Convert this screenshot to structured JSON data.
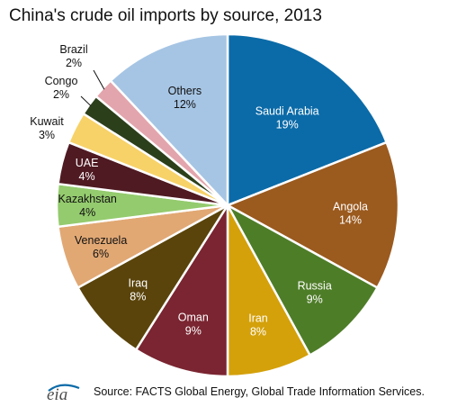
{
  "chart_data": {
    "type": "pie",
    "title": "China's crude oil imports by source, 2013",
    "unit": "%",
    "slices": [
      {
        "name": "Saudi Arabia",
        "value": 19,
        "label": "19%",
        "color": "#0b6ba8",
        "text_color": "#ffffff"
      },
      {
        "name": "Angola",
        "value": 14,
        "label": "14%",
        "color": "#9b5a1e",
        "text_color": "#ffffff"
      },
      {
        "name": "Russia",
        "value": 9,
        "label": "9%",
        "color": "#4e7d28",
        "text_color": "#ffffff"
      },
      {
        "name": "Iran",
        "value": 8,
        "label": "8%",
        "color": "#d4a10b",
        "text_color": "#ffffff"
      },
      {
        "name": "Oman",
        "value": 9,
        "label": "9%",
        "color": "#7a2531",
        "text_color": "#ffffff"
      },
      {
        "name": "Iraq",
        "value": 8,
        "label": "8%",
        "color": "#5a440b",
        "text_color": "#ffffff"
      },
      {
        "name": "Venezuela",
        "value": 6,
        "label": "6%",
        "color": "#e1a874",
        "text_color": "#111111"
      },
      {
        "name": "Kazakhstan",
        "value": 4,
        "label": "4%",
        "color": "#94cb6e",
        "text_color": "#111111"
      },
      {
        "name": "UAE",
        "value": 4,
        "label": "4%",
        "color": "#4f1a22",
        "text_color": "#ffffff"
      },
      {
        "name": "Kuwait",
        "value": 3,
        "label": "3%",
        "color": "#f7d268",
        "text_color": "#111111"
      },
      {
        "name": "Congo",
        "value": 2,
        "label": "2%",
        "color": "#2c3f1b",
        "text_color": "#111111"
      },
      {
        "name": "Brazil",
        "value": 2,
        "label": "2%",
        "color": "#e3a5ad",
        "text_color": "#111111"
      },
      {
        "name": "Others",
        "value": 12,
        "label": "12%",
        "color": "#a6c5e4",
        "text_color": "#111111"
      }
    ]
  },
  "source": "Source: FACTS Global Energy, Global Trade Information Services.",
  "logo_text": "eia",
  "colors": {
    "logo_blue": "#0b6ba8",
    "logo_gray": "#4d4d4d"
  }
}
